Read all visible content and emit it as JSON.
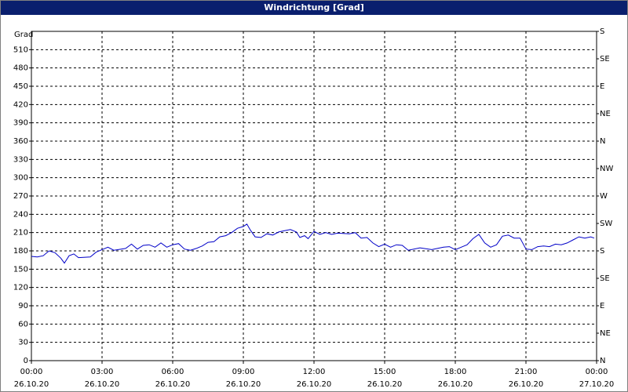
{
  "chart_data": {
    "type": "line",
    "title": "Windrichtung [Grad]",
    "y_label": "Grad",
    "xlim": [
      0,
      24
    ],
    "xticks": [
      {
        "value": 0,
        "label": "00:00",
        "date": "26.10.20"
      },
      {
        "value": 3,
        "label": "03:00",
        "date": "26.10.20"
      },
      {
        "value": 6,
        "label": "06:00",
        "date": "26.10.20"
      },
      {
        "value": 9,
        "label": "09:00",
        "date": "26.10.20"
      },
      {
        "value": 12,
        "label": "12:00",
        "date": "26.10.20"
      },
      {
        "value": 15,
        "label": "15:00",
        "date": "26.10.20"
      },
      {
        "value": 18,
        "label": "18:00",
        "date": "26.10.20"
      },
      {
        "value": 21,
        "label": "21:00",
        "date": "26.10.20"
      },
      {
        "value": 24,
        "label": "00:00",
        "date": "27.10.20"
      }
    ],
    "ylim": [
      0,
      540
    ],
    "yticks": [
      0,
      30,
      60,
      90,
      120,
      150,
      180,
      210,
      240,
      270,
      300,
      330,
      360,
      390,
      420,
      450,
      480,
      510
    ],
    "y2lim": [
      0,
      540
    ],
    "y2ticks": [
      {
        "value": 0,
        "label": "N"
      },
      {
        "value": 45,
        "label": "NE"
      },
      {
        "value": 90,
        "label": "E"
      },
      {
        "value": 135,
        "label": "SE"
      },
      {
        "value": 180,
        "label": "S"
      },
      {
        "value": 225,
        "label": "SW"
      },
      {
        "value": 270,
        "label": "W"
      },
      {
        "value": 315,
        "label": "NW"
      },
      {
        "value": 360,
        "label": "N"
      },
      {
        "value": 405,
        "label": "NE"
      },
      {
        "value": 450,
        "label": "E"
      },
      {
        "value": 495,
        "label": "SE"
      },
      {
        "value": 540,
        "label": "S"
      }
    ],
    "grid": true,
    "series": [
      {
        "color": "#0000c8",
        "x": [
          0,
          0.25,
          0.5,
          0.75,
          1.0,
          1.25,
          1.4,
          1.6,
          1.8,
          2.0,
          2.5,
          2.75,
          3.0,
          3.25,
          3.5,
          4.0,
          4.25,
          4.5,
          4.75,
          5.0,
          5.25,
          5.5,
          5.75,
          6.0,
          6.25,
          6.5,
          6.75,
          7.0,
          7.25,
          7.5,
          7.75,
          8.0,
          8.25,
          8.5,
          8.75,
          9.0,
          9.15,
          9.3,
          9.5,
          9.75,
          10.0,
          10.25,
          10.5,
          10.75,
          11.0,
          11.25,
          11.4,
          11.6,
          11.75,
          12.0,
          12.25,
          12.5,
          12.75,
          13.0,
          13.5,
          13.75,
          14.0,
          14.25,
          14.5,
          14.75,
          15.0,
          15.25,
          15.5,
          15.75,
          16.0,
          16.5,
          17.0,
          17.5,
          17.75,
          18.0,
          18.25,
          18.5,
          18.75,
          19.0,
          19.25,
          19.5,
          19.75,
          20.0,
          20.25,
          20.5,
          20.75,
          21.0,
          21.25,
          21.5,
          21.75,
          22.0,
          22.25,
          22.5,
          22.75,
          23.0,
          23.25,
          23.5,
          23.75,
          23.9
        ],
        "values": [
          171,
          170,
          172,
          180,
          177,
          168,
          160,
          172,
          175,
          169,
          170,
          178,
          182,
          186,
          181,
          184,
          191,
          183,
          189,
          190,
          186,
          193,
          186,
          190,
          192,
          183,
          181,
          184,
          188,
          194,
          195,
          203,
          205,
          210,
          217,
          220,
          224,
          214,
          203,
          202,
          208,
          206,
          211,
          213,
          215,
          211,
          202,
          205,
          200,
          212,
          207,
          210,
          207,
          209,
          208,
          210,
          201,
          202,
          193,
          187,
          191,
          186,
          190,
          189,
          181,
          185,
          182,
          186,
          187,
          182,
          186,
          190,
          200,
          207,
          193,
          186,
          190,
          204,
          206,
          201,
          201,
          183,
          182,
          187,
          188,
          187,
          191,
          190,
          193,
          198,
          203,
          201,
          203,
          201
        ]
      }
    ]
  }
}
